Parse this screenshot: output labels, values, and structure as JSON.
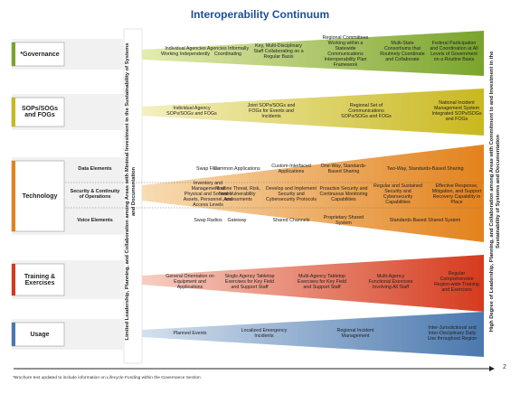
{
  "title": "Interoperability Continuum",
  "left_axis": "Limited Leadership, Planning, and Collaboration among Areas with Minimal Investment in the Sustainability of Systems and Documentation",
  "right_axis": "High Degree of Leadership, Planning, and Collaboration among Areas with Commitment to and Investment in the Sustainability of Systems and Documentation",
  "rows": [
    {
      "label": "*Governance",
      "items": [
        "Individual Agencies Working Independently",
        "Agencies Informally Coordinating",
        "Key, Multi-Disciplinary Staff Collaborating on a Regular Basis",
        "Regional Committees Working within a Statewide Communications Interoperability Plan Framework",
        "Multi-State Consortiums that Routinely Coordinate and Collaborate",
        "Federal Participation and Coordination at All Levels of Government on a Routine Basis"
      ]
    },
    {
      "label": "SOPs/SOGs and FOGs",
      "items": [
        "Individual Agency SOPs/SOGs and FOGs",
        "Joint SOPs/SOGs and FOGs for Events and Incidents",
        "Regional Set of Communications SOPs/SOGs and FOGs",
        "National Incident Management System Integrated SOPs/SOGs and FOGs"
      ]
    },
    {
      "label": "Technology",
      "subrows": [
        {
          "label": "Data Elements",
          "items": [
            "Swap Files",
            "Common Applications",
            "Custom-Interfaced Applications",
            "One-Way, Standards-Based Sharing",
            "Two-Way, Standards-Based Sharing"
          ]
        },
        {
          "label": "Security & Continuity of Operations",
          "items": [
            "Inventory and Management of Physical and Software Assets, Personnel, and Access Levels",
            "Routine Threat, Risk, and Vulnerability Assessments",
            "Develop and Implement Security and Cybersecurity Protocols",
            "Proactive Security and Continuous Monitoring Capabilities",
            "Regular and Sustained Security and Cybersecurity Capabilities",
            "Effective Response, Mitigation, and Support Recovery Capability in Place"
          ]
        },
        {
          "label": "Voice Elements",
          "items": [
            "Swap Radios",
            "Gateway",
            "Shared Channels",
            "Proprietary Shared System",
            "Standards-Based Shared System"
          ]
        }
      ]
    },
    {
      "label": "Training & Exercises",
      "items": [
        "General Orientation on Equipment and Applications",
        "Single Agency Tabletop Exercises for Key Field and Support Staff",
        "Multi-Agency Tabletop Exercises for Key Field and Support Staff",
        "Multi-Agency Functional Exercises Involving All Staff",
        "Regular Comprehensive Region-wide Training and Exercises"
      ]
    },
    {
      "label": "Usage",
      "items": [
        "Planned Events",
        "Localized Emergency Incidents",
        "Regional Incident Management",
        "Inter-Jurisdictional and Inter-Disciplinary Daily Use throughout Region"
      ]
    }
  ],
  "page_number": "2",
  "footnote": "*Brochure text updated to include information on Lifecycle Funding within the Governance Section"
}
